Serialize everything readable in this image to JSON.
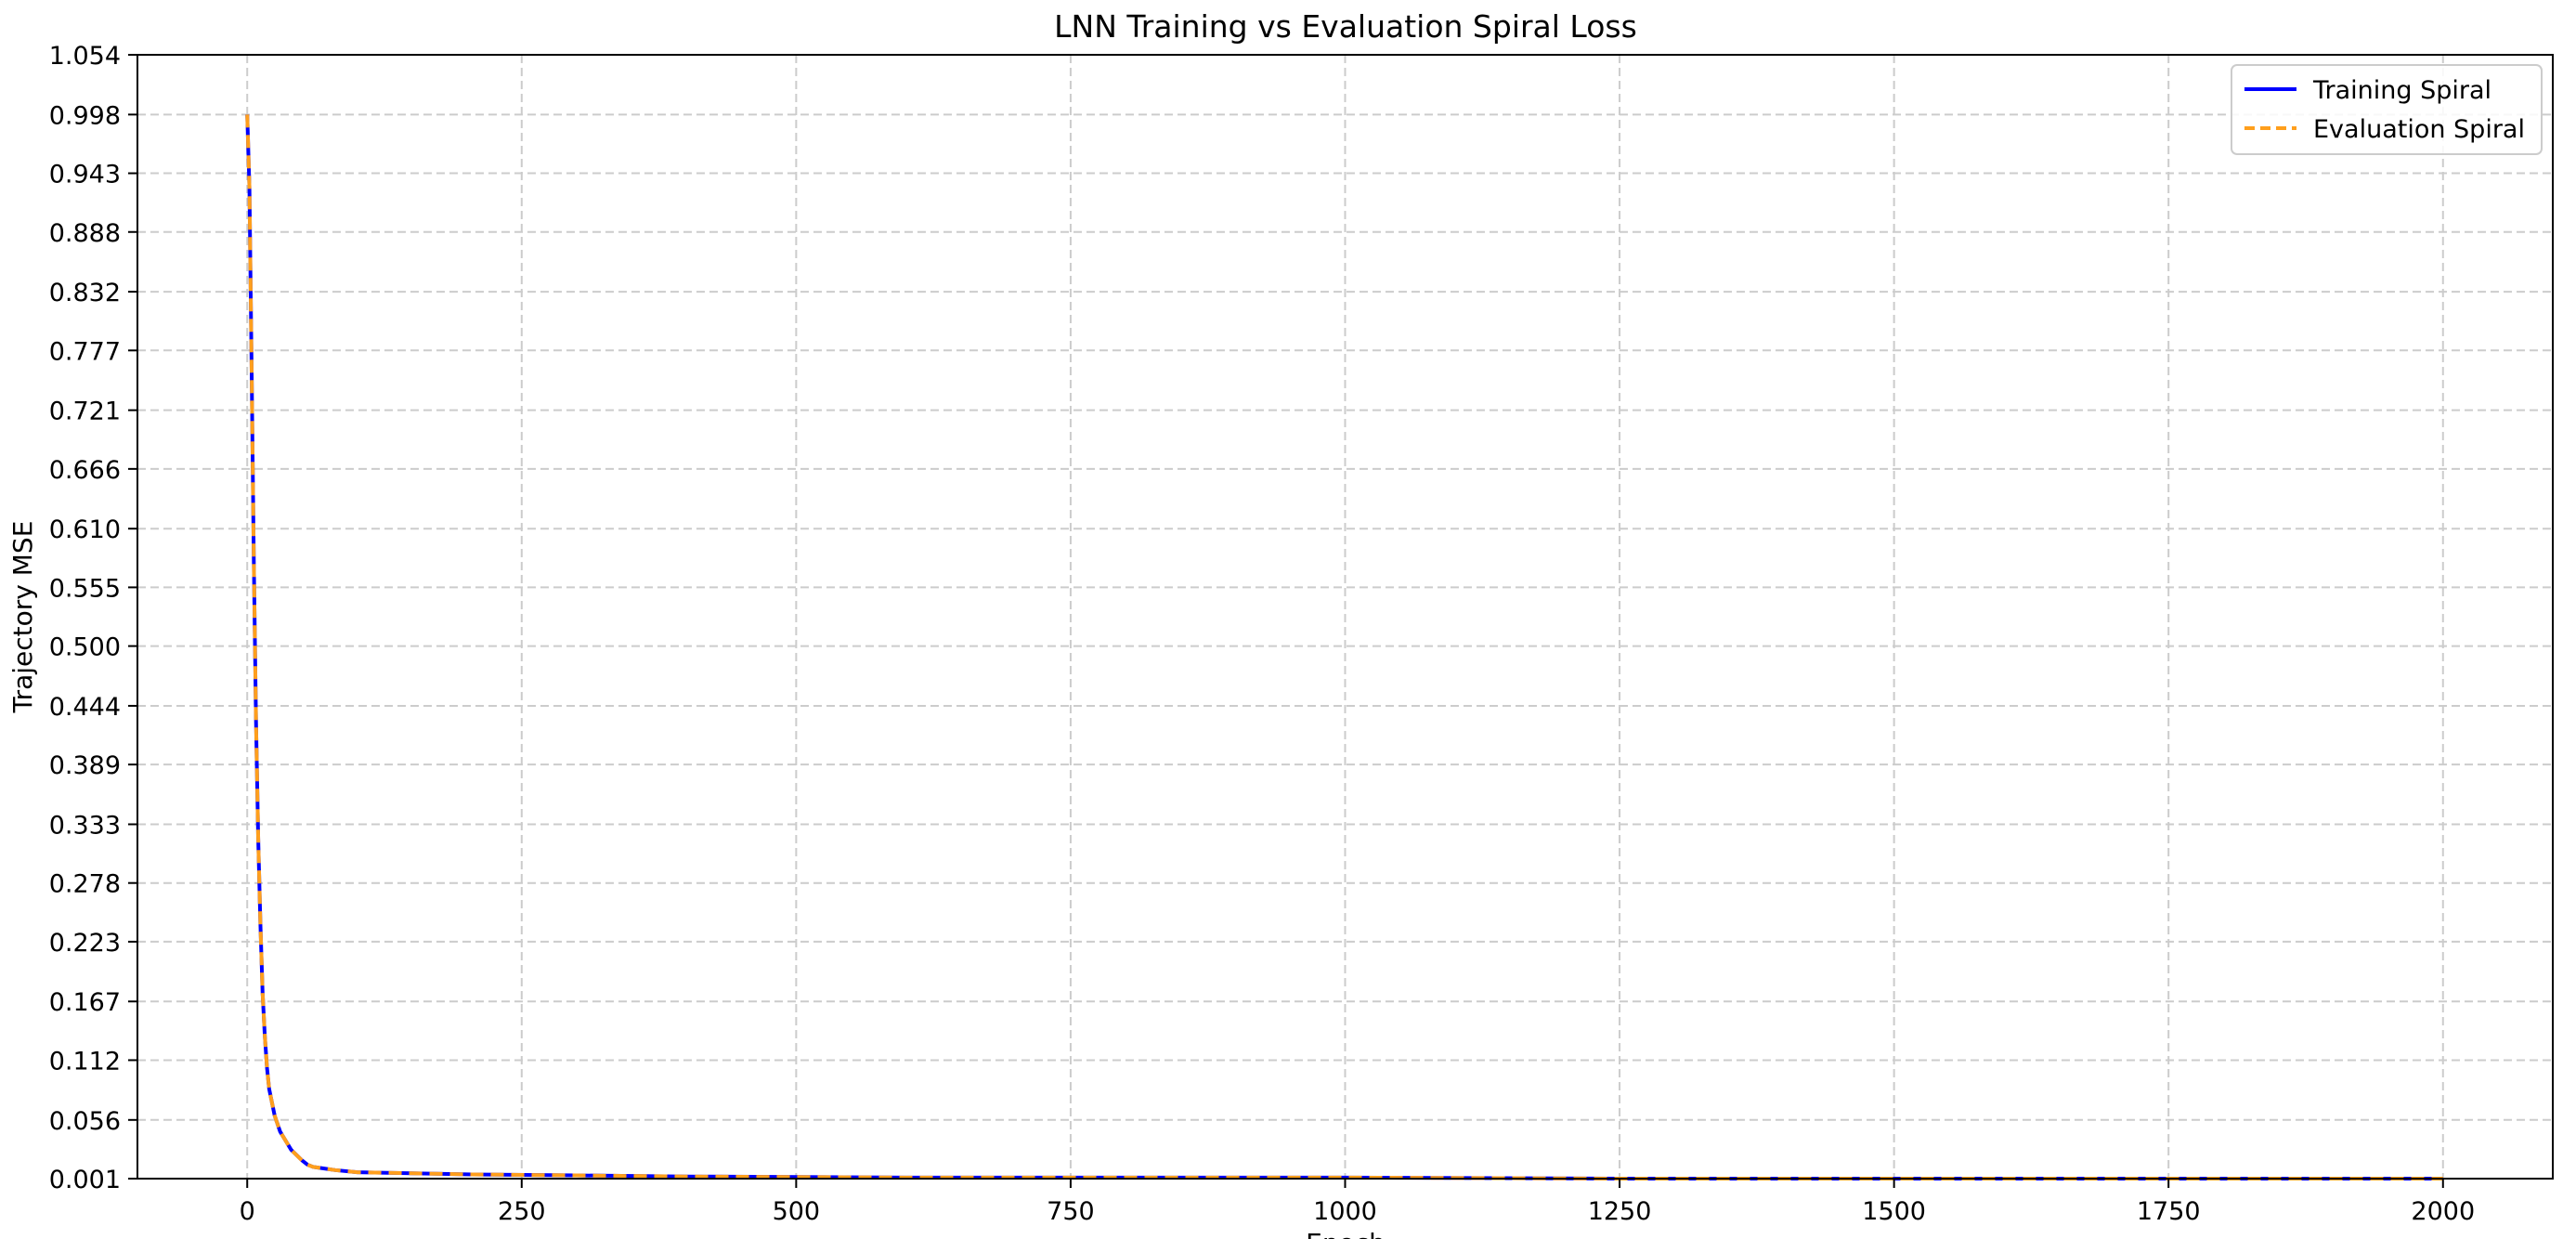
{
  "chart_data": {
    "type": "line",
    "title": "LNN Training vs Evaluation Spiral Loss",
    "xlabel": "Epoch",
    "ylabel": "Trajectory MSE",
    "xlim": [
      -100,
      2100
    ],
    "ylim": [
      0.001,
      1.054
    ],
    "xticks": [
      0,
      250,
      500,
      750,
      1000,
      1250,
      1500,
      1750,
      2000
    ],
    "xtick_labels": [
      "0",
      "250",
      "500",
      "750",
      "1000",
      "1250",
      "1500",
      "1750",
      "2000"
    ],
    "yticks": [
      0.001,
      0.056,
      0.112,
      0.167,
      0.223,
      0.278,
      0.333,
      0.389,
      0.444,
      0.5,
      0.555,
      0.61,
      0.666,
      0.721,
      0.777,
      0.832,
      0.888,
      0.943,
      0.998,
      1.054
    ],
    "ytick_labels": [
      "0.001",
      "0.056",
      "0.112",
      "0.167",
      "0.223",
      "0.278",
      "0.333",
      "0.389",
      "0.444",
      "0.500",
      "0.555",
      "0.610",
      "0.666",
      "0.721",
      "0.777",
      "0.832",
      "0.888",
      "0.943",
      "0.998",
      "1.054"
    ],
    "grid": true,
    "legend_position": "top-right",
    "series": [
      {
        "name": "Training Spiral",
        "color": "#0000ff",
        "style": "solid",
        "x": [
          0,
          2,
          4,
          6,
          8,
          10,
          12,
          14,
          16,
          18,
          20,
          25,
          30,
          40,
          50,
          55,
          60,
          80,
          100,
          150,
          200,
          300,
          400,
          600,
          800,
          1000,
          1250,
          1500,
          1750,
          2000
        ],
        "y": [
          0.998,
          0.93,
          0.76,
          0.58,
          0.43,
          0.32,
          0.24,
          0.175,
          0.135,
          0.105,
          0.085,
          0.06,
          0.045,
          0.028,
          0.018,
          0.014,
          0.012,
          0.009,
          0.007,
          0.006,
          0.005,
          0.004,
          0.003,
          0.002,
          0.002,
          0.002,
          0.001,
          0.001,
          0.001,
          0.001
        ]
      },
      {
        "name": "Evaluation Spiral",
        "color": "#ff9f1c",
        "style": "dashed",
        "x": [
          0,
          2,
          4,
          6,
          8,
          10,
          12,
          14,
          16,
          18,
          20,
          25,
          30,
          40,
          50,
          55,
          60,
          80,
          100,
          150,
          200,
          300,
          400,
          600,
          800,
          1000,
          1250,
          1500,
          1750,
          2000
        ],
        "y": [
          0.998,
          0.93,
          0.76,
          0.58,
          0.43,
          0.32,
          0.24,
          0.175,
          0.135,
          0.105,
          0.085,
          0.06,
          0.045,
          0.028,
          0.018,
          0.014,
          0.012,
          0.009,
          0.007,
          0.006,
          0.005,
          0.004,
          0.003,
          0.002,
          0.002,
          0.002,
          0.001,
          0.001,
          0.001,
          0.001
        ]
      }
    ]
  }
}
